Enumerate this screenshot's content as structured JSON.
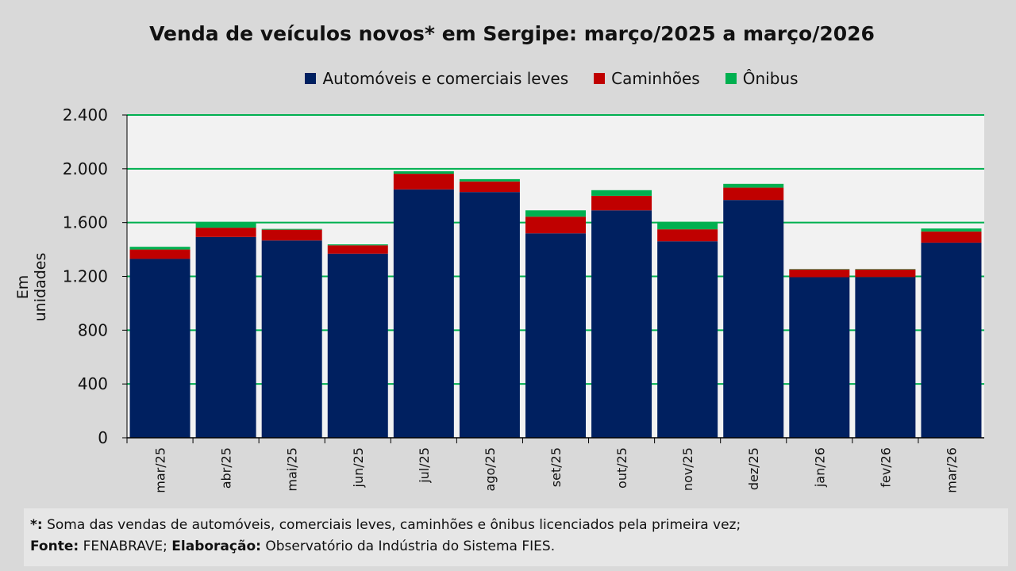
{
  "chart_data": {
    "type": "bar",
    "stacked": true,
    "title": "Venda de veículos novos* em Sergipe: março/2025 a março/2026",
    "xlabel": "",
    "ylabel": "Em unidades",
    "ylim": [
      0,
      2400
    ],
    "yticks": [
      0,
      400,
      800,
      1200,
      1600,
      2000,
      2400
    ],
    "ytick_labels": [
      "0",
      "400",
      "800",
      "1.200",
      "1.600",
      "2.000",
      "2.400"
    ],
    "grid": true,
    "legend_position": "top",
    "categories": [
      "mar/25",
      "abr/25",
      "mai/25",
      "jun/25",
      "jul/25",
      "ago/25",
      "set/25",
      "out/25",
      "nov/25",
      "dez/25",
      "jan/26",
      "fev/26",
      "mar/26"
    ],
    "series": [
      {
        "name": "Automóveis e comerciais leves",
        "color": "#002060",
        "values": [
          1330,
          1493,
          1467,
          1369,
          1847,
          1827,
          1520,
          1691,
          1461,
          1768,
          1194,
          1195,
          1451
        ]
      },
      {
        "name": "Caminhões",
        "color": "#c00000",
        "values": [
          70,
          69,
          80,
          62,
          116,
          79,
          124,
          108,
          89,
          92,
          58,
          57,
          83
        ]
      },
      {
        "name": "Ônibus",
        "color": "#00b050",
        "values": [
          20,
          41,
          6,
          7,
          19,
          17,
          47,
          42,
          55,
          28,
          3,
          3,
          22
        ]
      }
    ]
  },
  "footnote": {
    "star_label": "*:",
    "star_text": " Soma das vendas de automóveis, comerciais leves, caminhões e ônibus licenciados pela primeira vez;",
    "source_label": "Fonte:",
    "source_text": " FENABRAVE; ",
    "elab_label": "Elaboração:",
    "elab_text": " Observatório da Indústria do Sistema FIES."
  }
}
